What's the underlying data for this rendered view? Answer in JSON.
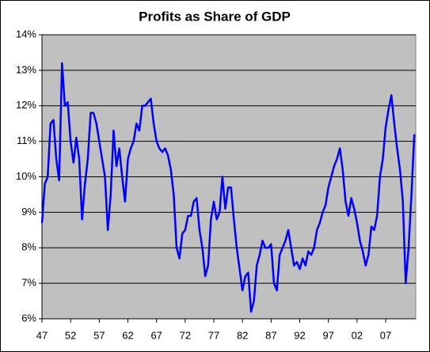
{
  "chart_data": {
    "type": "line",
    "title": "Profits as Share of GDP",
    "x": [
      1947,
      1947.5,
      1948,
      1948.5,
      1949,
      1949.5,
      1950,
      1950.5,
      1951,
      1951.5,
      1952,
      1952.5,
      1953,
      1953.5,
      1954,
      1954.5,
      1955,
      1955.5,
      1956,
      1956.5,
      1957,
      1957.5,
      1958,
      1958.5,
      1959,
      1959.5,
      1960,
      1960.5,
      1961,
      1961.5,
      1962,
      1962.5,
      1963,
      1963.5,
      1964,
      1964.5,
      1965,
      1965.5,
      1966,
      1966.5,
      1967,
      1967.5,
      1968,
      1968.5,
      1969,
      1969.5,
      1970,
      1970.5,
      1971,
      1971.5,
      1972,
      1972.5,
      1973,
      1973.5,
      1974,
      1974.5,
      1975,
      1975.5,
      1976,
      1976.5,
      1977,
      1977.5,
      1978,
      1978.5,
      1979,
      1979.5,
      1980,
      1980.5,
      1981,
      1981.5,
      1982,
      1982.5,
      1983,
      1983.5,
      1984,
      1984.5,
      1985,
      1985.5,
      1986,
      1986.5,
      1987,
      1987.5,
      1988,
      1988.5,
      1989,
      1989.5,
      1990,
      1990.5,
      1991,
      1991.5,
      1992,
      1992.5,
      1993,
      1993.5,
      1994,
      1994.5,
      1995,
      1995.5,
      1996,
      1996.5,
      1997,
      1997.5,
      1998,
      1998.5,
      1999,
      1999.5,
      2000,
      2000.5,
      2001,
      2001.5,
      2002,
      2002.5,
      2003,
      2003.5,
      2004,
      2004.5,
      2005,
      2005.5,
      2006,
      2006.5,
      2007,
      2007.5,
      2008,
      2008.5,
      2009,
      2009.5,
      2010,
      2010.5,
      2011,
      2011.5,
      2012
    ],
    "values": [
      8.7,
      9.8,
      10.0,
      11.5,
      11.6,
      10.5,
      9.9,
      13.2,
      12.0,
      12.1,
      11.0,
      10.4,
      11.1,
      10.5,
      8.8,
      9.8,
      10.5,
      11.8,
      11.8,
      11.5,
      11.0,
      10.5,
      10.0,
      8.5,
      9.5,
      11.3,
      10.3,
      10.8,
      10.0,
      9.3,
      10.5,
      10.8,
      11.0,
      11.5,
      11.3,
      12.0,
      12.0,
      12.1,
      12.2,
      11.5,
      11.0,
      10.8,
      10.7,
      10.8,
      10.6,
      10.2,
      9.5,
      8.0,
      7.7,
      8.4,
      8.5,
      8.9,
      8.9,
      9.3,
      9.4,
      8.5,
      8.0,
      7.2,
      7.5,
      8.8,
      9.3,
      8.8,
      9.0,
      10.0,
      9.1,
      9.7,
      9.7,
      8.8,
      8.0,
      7.4,
      6.8,
      7.2,
      7.3,
      6.2,
      6.5,
      7.5,
      7.8,
      8.2,
      8.0,
      8.0,
      8.1,
      7.0,
      6.8,
      7.8,
      8.0,
      8.2,
      8.5,
      8.0,
      7.5,
      7.6,
      7.4,
      7.7,
      7.5,
      7.9,
      7.8,
      8.0,
      8.5,
      8.7,
      9.0,
      9.2,
      9.7,
      10.0,
      10.3,
      10.5,
      10.8,
      10.2,
      9.3,
      8.9,
      9.4,
      9.1,
      8.7,
      8.2,
      7.9,
      7.5,
      7.8,
      8.6,
      8.5,
      8.9,
      10.0,
      10.5,
      11.4,
      11.9,
      12.3,
      11.5,
      10.8,
      10.2,
      9.3,
      7.0,
      8.0,
      9.5,
      11.2
    ],
    "color": "#0000ff",
    "xlim": [
      1947,
      2012.25
    ],
    "xticks": [
      {
        "value": 1947,
        "label": "47"
      },
      {
        "value": 1952,
        "label": "52"
      },
      {
        "value": 1957,
        "label": "57"
      },
      {
        "value": 1962,
        "label": "62"
      },
      {
        "value": 1967,
        "label": "67"
      },
      {
        "value": 1972,
        "label": "72"
      },
      {
        "value": 1977,
        "label": "77"
      },
      {
        "value": 1982,
        "label": "82"
      },
      {
        "value": 1987,
        "label": "87"
      },
      {
        "value": 1992,
        "label": "92"
      },
      {
        "value": 1997,
        "label": "97"
      },
      {
        "value": 2002,
        "label": "02"
      },
      {
        "value": 2007,
        "label": "07"
      }
    ],
    "ylim": [
      6,
      14
    ],
    "yticks": [
      {
        "value": 6,
        "label": "6%"
      },
      {
        "value": 7,
        "label": "7%"
      },
      {
        "value": 8,
        "label": "8%"
      },
      {
        "value": 9,
        "label": "9%"
      },
      {
        "value": 10,
        "label": "10%"
      },
      {
        "value": 11,
        "label": "11%"
      },
      {
        "value": 12,
        "label": "12%"
      },
      {
        "value": 13,
        "label": "13%"
      },
      {
        "value": 14,
        "label": "14%"
      }
    ],
    "grid": true,
    "plot_background": "#c0c0c0"
  }
}
